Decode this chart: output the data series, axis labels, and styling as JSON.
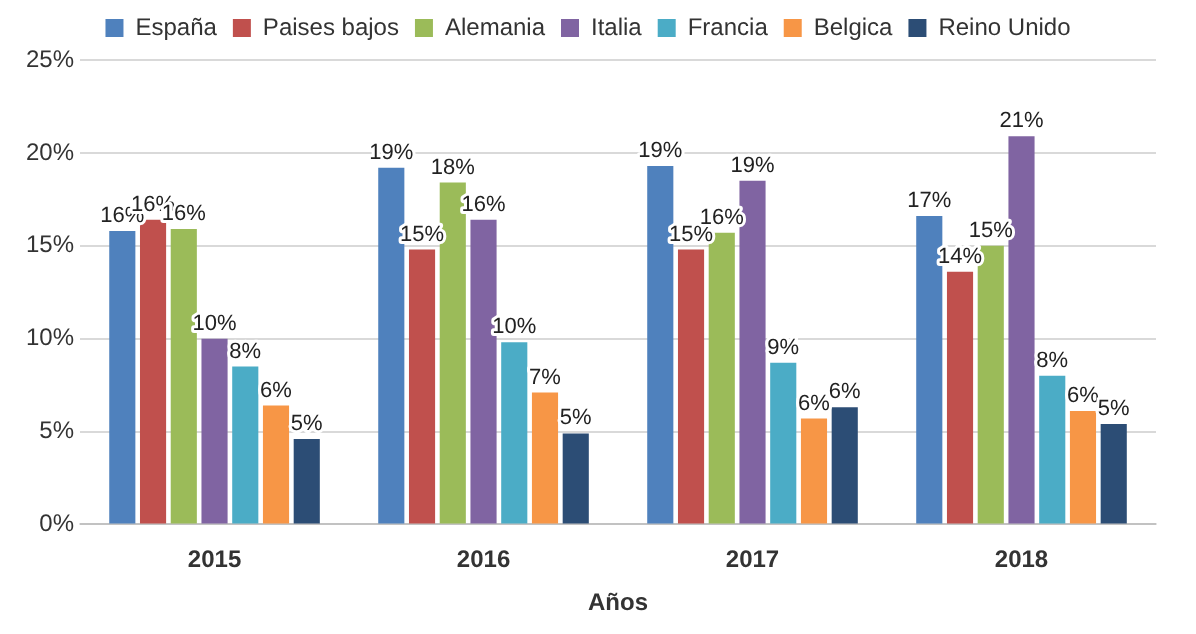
{
  "chart_data": {
    "type": "bar",
    "xlabel": "Años",
    "categories": [
      "2015",
      "2016",
      "2017",
      "2018"
    ],
    "series": [
      {
        "name": "España",
        "color": "#4f81bd",
        "values": [
          15.8,
          19.2,
          19.3,
          16.6
        ],
        "value_labels": [
          "16%",
          "19%",
          "19%",
          "17%"
        ]
      },
      {
        "name": "Paises bajos",
        "color": "#c0504d",
        "values": [
          16.4,
          14.8,
          14.8,
          13.6
        ],
        "value_labels": [
          "16%",
          "15%",
          "15%",
          "14%"
        ]
      },
      {
        "name": "Alemania",
        "color": "#9bbb59",
        "values": [
          15.9,
          18.4,
          15.7,
          15.0
        ],
        "value_labels": [
          "16%",
          "18%",
          "16%",
          "15%"
        ]
      },
      {
        "name": "Italia",
        "color": "#8064a2",
        "values": [
          10.0,
          16.4,
          18.5,
          20.9
        ],
        "value_labels": [
          "10%",
          "16%",
          "19%",
          "21%"
        ]
      },
      {
        "name": "Francia",
        "color": "#4bacc6",
        "values": [
          8.5,
          9.8,
          8.7,
          8.0
        ],
        "value_labels": [
          "8%",
          "10%",
          "9%",
          "8%"
        ]
      },
      {
        "name": "Belgica",
        "color": "#f79646",
        "values": [
          6.4,
          7.1,
          5.7,
          6.1
        ],
        "value_labels": [
          "6%",
          "7%",
          "6%",
          "6%"
        ]
      },
      {
        "name": "Reino Unido",
        "color": "#2c4d75",
        "values": [
          4.6,
          4.9,
          6.3,
          5.4
        ],
        "value_labels": [
          "5%",
          "5%",
          "6%",
          "5%"
        ]
      }
    ],
    "ylim": [
      0,
      25
    ],
    "yticks": [
      {
        "value": 0,
        "label": "0%"
      },
      {
        "value": 5,
        "label": "5%"
      },
      {
        "value": 10,
        "label": "10%"
      },
      {
        "value": 15,
        "label": "15%"
      },
      {
        "value": 20,
        "label": "20%"
      },
      {
        "value": 25,
        "label": "25%"
      }
    ],
    "grid": "y",
    "legend": "top"
  }
}
